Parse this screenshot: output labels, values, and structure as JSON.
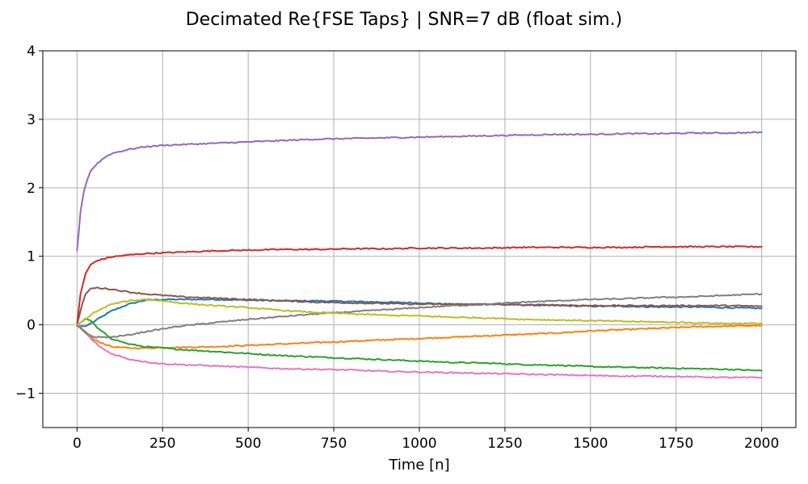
{
  "chart_data": {
    "type": "line",
    "title": "Decimated Re{FSE Taps} | SNR=7 dB (float sim.)",
    "xlabel": "Time [n]",
    "ylabel": "",
    "xlim": [
      -100,
      2100
    ],
    "ylim": [
      -1.5,
      4
    ],
    "xticks": [
      0,
      250,
      500,
      750,
      1000,
      1250,
      1500,
      1750,
      2000
    ],
    "yticks": [
      -1,
      0,
      1,
      2,
      3,
      4
    ],
    "xtick_labels": [
      "0",
      "250",
      "500",
      "750",
      "1000",
      "1250",
      "1500",
      "1750",
      "2000"
    ],
    "ytick_labels": [
      "−1",
      "0",
      "1",
      "2",
      "3",
      "4"
    ],
    "grid": true,
    "legend": false,
    "series": [
      {
        "color": "#1f77b4",
        "points": [
          [
            0,
            -0.02
          ],
          [
            25,
            -0.02
          ],
          [
            50,
            0.05
          ],
          [
            100,
            0.2
          ],
          [
            150,
            0.3
          ],
          [
            200,
            0.36
          ],
          [
            250,
            0.37
          ],
          [
            300,
            0.37
          ],
          [
            400,
            0.37
          ],
          [
            500,
            0.36
          ],
          [
            600,
            0.35
          ],
          [
            700,
            0.35
          ],
          [
            800,
            0.34
          ],
          [
            900,
            0.33
          ],
          [
            1000,
            0.32
          ],
          [
            1100,
            0.3
          ],
          [
            1200,
            0.3
          ],
          [
            1300,
            0.29
          ],
          [
            1400,
            0.28
          ],
          [
            1500,
            0.27
          ],
          [
            1600,
            0.27
          ],
          [
            1700,
            0.26
          ],
          [
            1800,
            0.26
          ],
          [
            1900,
            0.25
          ],
          [
            2000,
            0.24
          ]
        ]
      },
      {
        "color": "#ff7f0e",
        "points": [
          [
            0,
            0.0
          ],
          [
            25,
            -0.1
          ],
          [
            50,
            -0.22
          ],
          [
            100,
            -0.32
          ],
          [
            150,
            -0.34
          ],
          [
            200,
            -0.34
          ],
          [
            250,
            -0.33
          ],
          [
            300,
            -0.33
          ],
          [
            400,
            -0.32
          ],
          [
            500,
            -0.3
          ],
          [
            600,
            -0.28
          ],
          [
            700,
            -0.26
          ],
          [
            800,
            -0.24
          ],
          [
            900,
            -0.22
          ],
          [
            1000,
            -0.2
          ],
          [
            1100,
            -0.18
          ],
          [
            1200,
            -0.16
          ],
          [
            1300,
            -0.14
          ],
          [
            1400,
            -0.12
          ],
          [
            1500,
            -0.09
          ],
          [
            1600,
            -0.07
          ],
          [
            1700,
            -0.05
          ],
          [
            1800,
            -0.03
          ],
          [
            1900,
            -0.02
          ],
          [
            2000,
            -0.01
          ]
        ]
      },
      {
        "color": "#2ca02c",
        "points": [
          [
            0,
            0.0
          ],
          [
            15,
            0.05
          ],
          [
            25,
            0.09
          ],
          [
            40,
            0.06
          ],
          [
            60,
            -0.05
          ],
          [
            100,
            -0.2
          ],
          [
            150,
            -0.28
          ],
          [
            200,
            -0.32
          ],
          [
            250,
            -0.34
          ],
          [
            300,
            -0.36
          ],
          [
            400,
            -0.39
          ],
          [
            500,
            -0.42
          ],
          [
            600,
            -0.45
          ],
          [
            700,
            -0.47
          ],
          [
            800,
            -0.49
          ],
          [
            900,
            -0.51
          ],
          [
            1000,
            -0.53
          ],
          [
            1100,
            -0.55
          ],
          [
            1200,
            -0.56
          ],
          [
            1300,
            -0.58
          ],
          [
            1400,
            -0.59
          ],
          [
            1500,
            -0.61
          ],
          [
            1600,
            -0.62
          ],
          [
            1700,
            -0.63
          ],
          [
            1800,
            -0.64
          ],
          [
            1900,
            -0.65
          ],
          [
            2000,
            -0.67
          ]
        ]
      },
      {
        "color": "#d62728",
        "points": [
          [
            0,
            0.0
          ],
          [
            10,
            0.45
          ],
          [
            25,
            0.75
          ],
          [
            40,
            0.88
          ],
          [
            60,
            0.94
          ],
          [
            100,
            0.99
          ],
          [
            150,
            1.02
          ],
          [
            200,
            1.04
          ],
          [
            250,
            1.05
          ],
          [
            300,
            1.06
          ],
          [
            400,
            1.08
          ],
          [
            500,
            1.09
          ],
          [
            600,
            1.1
          ],
          [
            700,
            1.1
          ],
          [
            800,
            1.11
          ],
          [
            900,
            1.11
          ],
          [
            1000,
            1.12
          ],
          [
            1100,
            1.12
          ],
          [
            1200,
            1.12
          ],
          [
            1300,
            1.13
          ],
          [
            1400,
            1.13
          ],
          [
            1500,
            1.13
          ],
          [
            1600,
            1.13
          ],
          [
            1700,
            1.14
          ],
          [
            1800,
            1.14
          ],
          [
            1900,
            1.14
          ],
          [
            2000,
            1.14
          ]
        ]
      },
      {
        "color": "#9467bd",
        "points": [
          [
            0,
            1.08
          ],
          [
            5,
            1.35
          ],
          [
            10,
            1.65
          ],
          [
            20,
            1.95
          ],
          [
            30,
            2.12
          ],
          [
            40,
            2.25
          ],
          [
            60,
            2.36
          ],
          [
            80,
            2.44
          ],
          [
            100,
            2.5
          ],
          [
            150,
            2.56
          ],
          [
            200,
            2.6
          ],
          [
            250,
            2.62
          ],
          [
            300,
            2.63
          ],
          [
            400,
            2.65
          ],
          [
            500,
            2.67
          ],
          [
            600,
            2.69
          ],
          [
            700,
            2.71
          ],
          [
            800,
            2.72
          ],
          [
            900,
            2.73
          ],
          [
            1000,
            2.74
          ],
          [
            1100,
            2.75
          ],
          [
            1200,
            2.76
          ],
          [
            1300,
            2.77
          ],
          [
            1400,
            2.78
          ],
          [
            1500,
            2.78
          ],
          [
            1600,
            2.79
          ],
          [
            1700,
            2.79
          ],
          [
            1800,
            2.8
          ],
          [
            1900,
            2.8
          ],
          [
            2000,
            2.81
          ]
        ]
      },
      {
        "color": "#8c564b",
        "points": [
          [
            0,
            0.0
          ],
          [
            15,
            0.3
          ],
          [
            25,
            0.45
          ],
          [
            40,
            0.53
          ],
          [
            60,
            0.54
          ],
          [
            100,
            0.52
          ],
          [
            150,
            0.48
          ],
          [
            200,
            0.45
          ],
          [
            250,
            0.43
          ],
          [
            300,
            0.41
          ],
          [
            400,
            0.39
          ],
          [
            500,
            0.37
          ],
          [
            600,
            0.35
          ],
          [
            700,
            0.33
          ],
          [
            800,
            0.32
          ],
          [
            900,
            0.31
          ],
          [
            1000,
            0.3
          ],
          [
            1100,
            0.3
          ],
          [
            1200,
            0.3
          ],
          [
            1300,
            0.29
          ],
          [
            1400,
            0.29
          ],
          [
            1500,
            0.28
          ],
          [
            1600,
            0.28
          ],
          [
            1700,
            0.28
          ],
          [
            1800,
            0.28
          ],
          [
            1900,
            0.28
          ],
          [
            2000,
            0.27
          ]
        ]
      },
      {
        "color": "#e377c2",
        "points": [
          [
            0,
            0.0
          ],
          [
            25,
            -0.12
          ],
          [
            50,
            -0.25
          ],
          [
            75,
            -0.35
          ],
          [
            100,
            -0.42
          ],
          [
            150,
            -0.5
          ],
          [
            200,
            -0.54
          ],
          [
            250,
            -0.57
          ],
          [
            300,
            -0.58
          ],
          [
            400,
            -0.6
          ],
          [
            500,
            -0.62
          ],
          [
            600,
            -0.64
          ],
          [
            700,
            -0.65
          ],
          [
            800,
            -0.66
          ],
          [
            900,
            -0.68
          ],
          [
            1000,
            -0.69
          ],
          [
            1100,
            -0.7
          ],
          [
            1200,
            -0.71
          ],
          [
            1300,
            -0.72
          ],
          [
            1400,
            -0.73
          ],
          [
            1500,
            -0.74
          ],
          [
            1600,
            -0.75
          ],
          [
            1700,
            -0.75
          ],
          [
            1800,
            -0.76
          ],
          [
            1900,
            -0.77
          ],
          [
            2000,
            -0.77
          ]
        ]
      },
      {
        "color": "#7f7f7f",
        "points": [
          [
            0,
            0.0
          ],
          [
            25,
            -0.12
          ],
          [
            50,
            -0.18
          ],
          [
            100,
            -0.18
          ],
          [
            150,
            -0.15
          ],
          [
            200,
            -0.1
          ],
          [
            250,
            -0.06
          ],
          [
            300,
            -0.02
          ],
          [
            400,
            0.03
          ],
          [
            500,
            0.08
          ],
          [
            600,
            0.12
          ],
          [
            700,
            0.16
          ],
          [
            800,
            0.19
          ],
          [
            900,
            0.22
          ],
          [
            1000,
            0.25
          ],
          [
            1100,
            0.28
          ],
          [
            1200,
            0.3
          ],
          [
            1300,
            0.33
          ],
          [
            1400,
            0.35
          ],
          [
            1500,
            0.37
          ],
          [
            1600,
            0.38
          ],
          [
            1700,
            0.4
          ],
          [
            1800,
            0.41
          ],
          [
            1900,
            0.43
          ],
          [
            2000,
            0.45
          ]
        ]
      },
      {
        "color": "#bcbd22",
        "points": [
          [
            0,
            0.0
          ],
          [
            25,
            0.08
          ],
          [
            50,
            0.18
          ],
          [
            100,
            0.3
          ],
          [
            150,
            0.35
          ],
          [
            200,
            0.37
          ],
          [
            250,
            0.35
          ],
          [
            300,
            0.32
          ],
          [
            400,
            0.28
          ],
          [
            500,
            0.25
          ],
          [
            600,
            0.21
          ],
          [
            700,
            0.18
          ],
          [
            800,
            0.16
          ],
          [
            900,
            0.14
          ],
          [
            1000,
            0.13
          ],
          [
            1100,
            0.11
          ],
          [
            1200,
            0.1
          ],
          [
            1300,
            0.08
          ],
          [
            1400,
            0.07
          ],
          [
            1500,
            0.06
          ],
          [
            1600,
            0.05
          ],
          [
            1700,
            0.04
          ],
          [
            1800,
            0.03
          ],
          [
            1900,
            0.02
          ],
          [
            2000,
            0.02
          ]
        ]
      }
    ]
  }
}
